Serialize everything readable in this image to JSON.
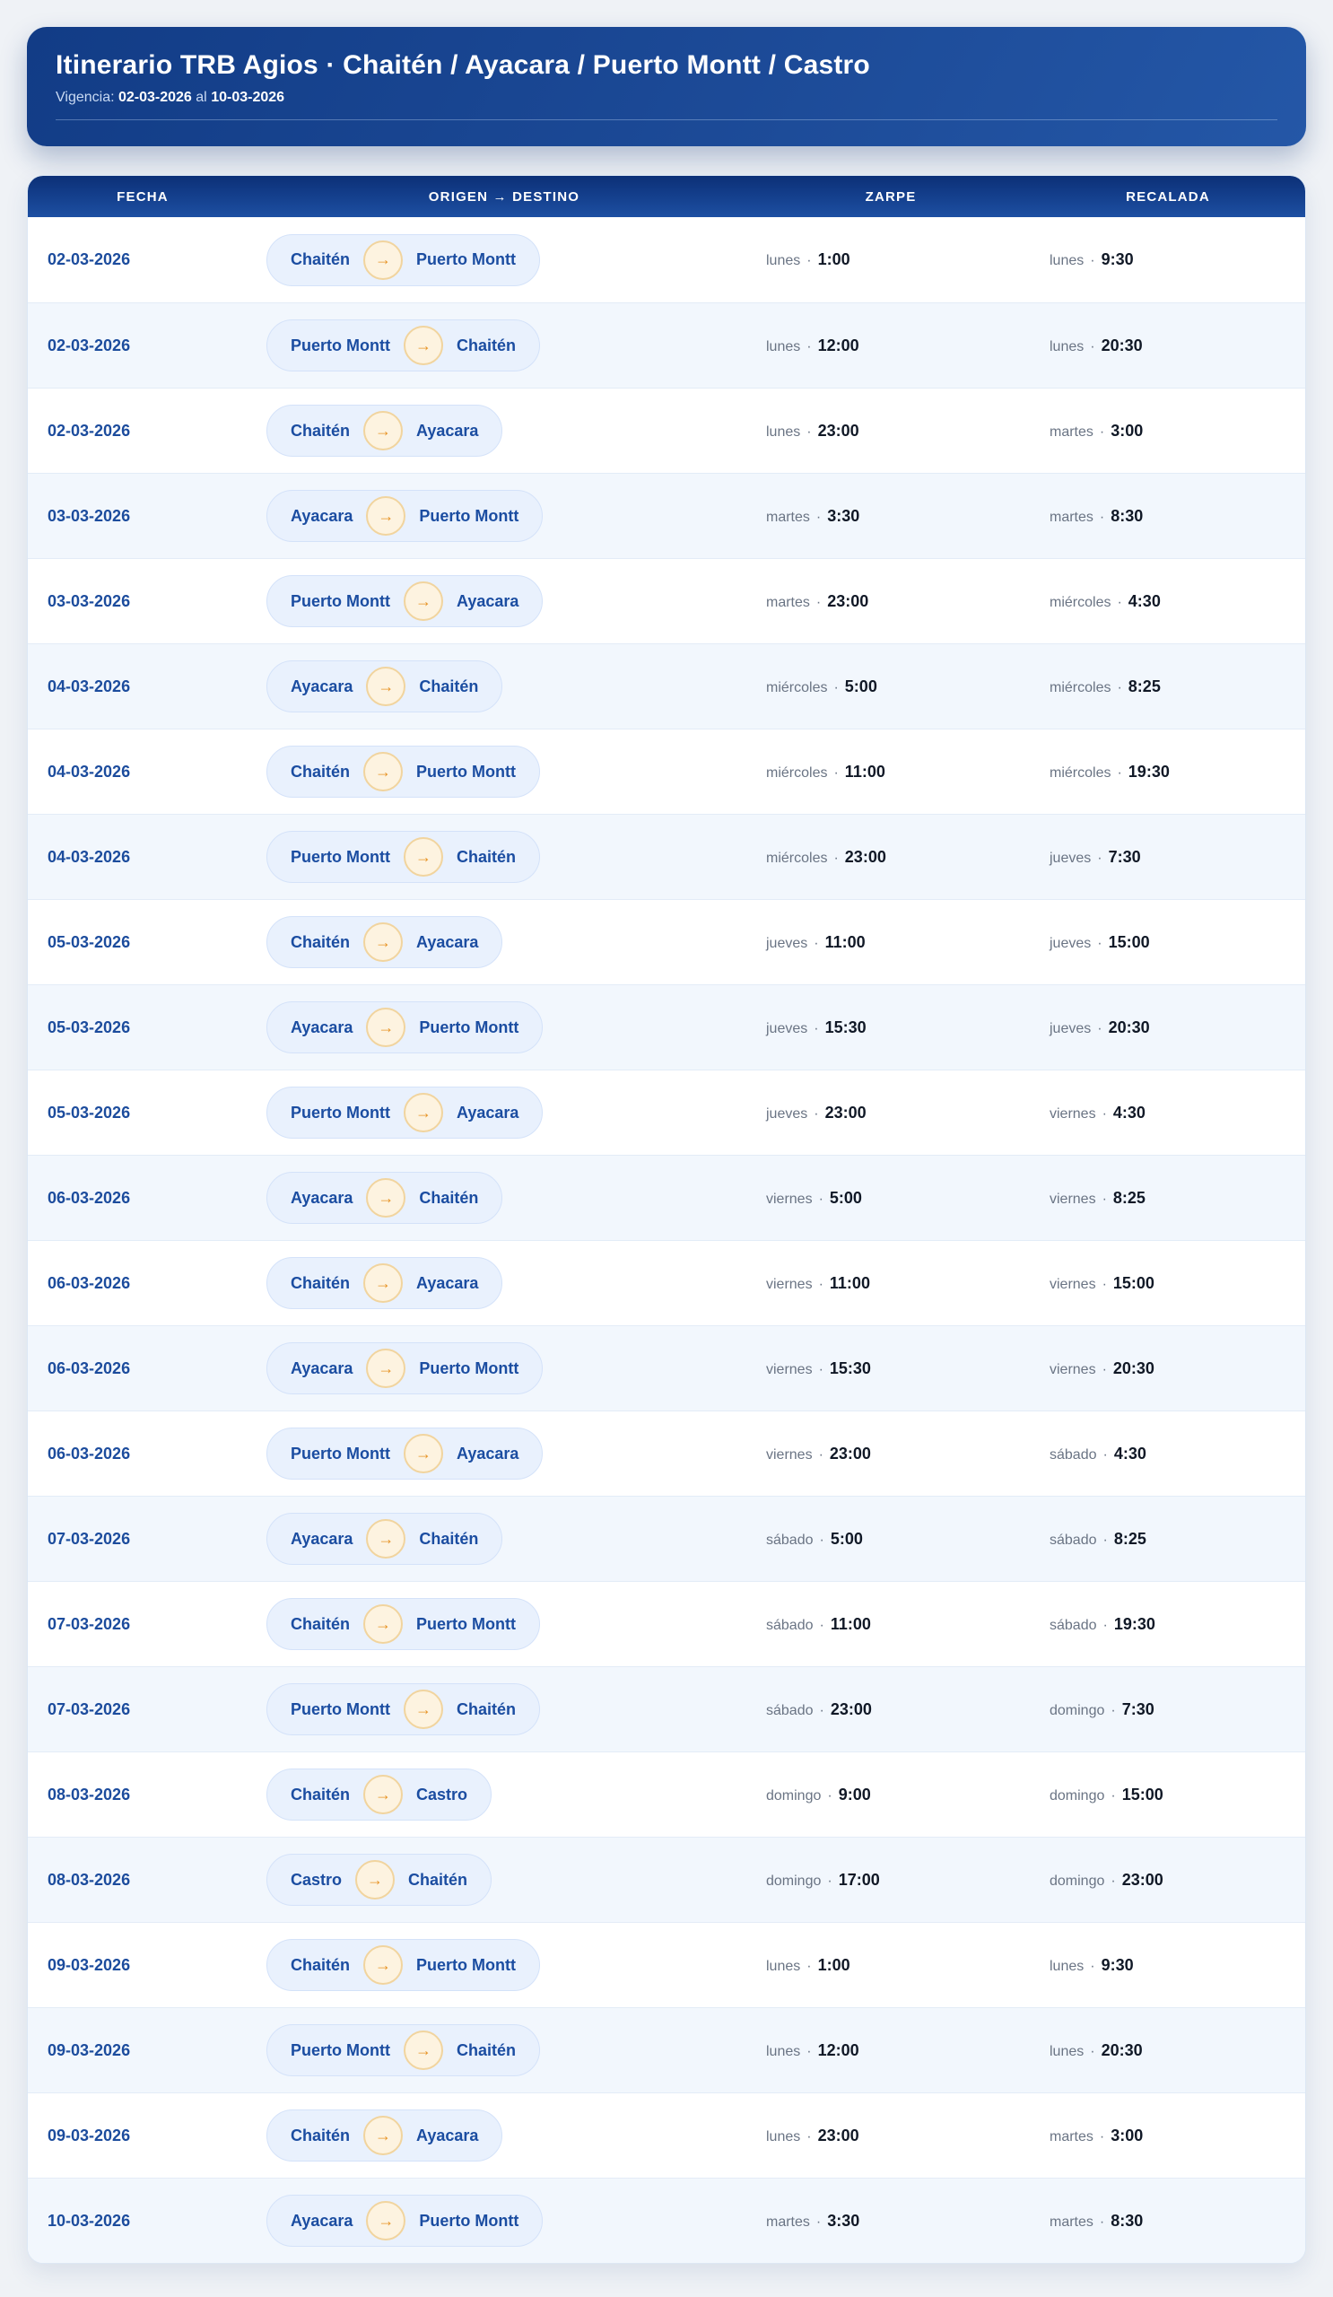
{
  "header": {
    "title": "Itinerario TRB Agios · Chaitén / Ayacara / Puerto Montt / Castro",
    "vigencia_label": "Vigencia:",
    "vigencia_from": "02-03-2026",
    "vigencia_al": "al",
    "vigencia_to": "10-03-2026"
  },
  "colors": {
    "header_blue_dark": "#123c86",
    "header_blue_light": "#2457a7",
    "thead_navy": "#0c3077",
    "date_blue": "#1c4c9d",
    "pill_bg": "#e9f1fd",
    "pill_border": "#d4e2f9",
    "badge_bg": "#fdf3e0",
    "badge_border": "#f1d49e",
    "arrow_orange": "#e79427",
    "day_gray": "#6a7484",
    "time_dark": "#101826",
    "row_alt_bg": "#f2f7fd",
    "page_bg": "#eff2f6"
  },
  "table": {
    "columns": [
      "FECHA",
      "ORIGEN → DESTINO",
      "ZARPE",
      "RECALADA"
    ],
    "separator": "·",
    "route_arrow": "→",
    "rows": [
      {
        "fecha": "02-03-2026",
        "origen": "Chaitén",
        "destino": "Puerto Montt",
        "zarpe_dia": "lunes",
        "zarpe_hora": "1:00",
        "recalada_dia": "lunes",
        "recalada_hora": "9:30"
      },
      {
        "fecha": "02-03-2026",
        "origen": "Puerto Montt",
        "destino": "Chaitén",
        "zarpe_dia": "lunes",
        "zarpe_hora": "12:00",
        "recalada_dia": "lunes",
        "recalada_hora": "20:30"
      },
      {
        "fecha": "02-03-2026",
        "origen": "Chaitén",
        "destino": "Ayacara",
        "zarpe_dia": "lunes",
        "zarpe_hora": "23:00",
        "recalada_dia": "martes",
        "recalada_hora": "3:00"
      },
      {
        "fecha": "03-03-2026",
        "origen": "Ayacara",
        "destino": "Puerto Montt",
        "zarpe_dia": "martes",
        "zarpe_hora": "3:30",
        "recalada_dia": "martes",
        "recalada_hora": "8:30"
      },
      {
        "fecha": "03-03-2026",
        "origen": "Puerto Montt",
        "destino": "Ayacara",
        "zarpe_dia": "martes",
        "zarpe_hora": "23:00",
        "recalada_dia": "miércoles",
        "recalada_hora": "4:30"
      },
      {
        "fecha": "04-03-2026",
        "origen": "Ayacara",
        "destino": "Chaitén",
        "zarpe_dia": "miércoles",
        "zarpe_hora": "5:00",
        "recalada_dia": "miércoles",
        "recalada_hora": "8:25"
      },
      {
        "fecha": "04-03-2026",
        "origen": "Chaitén",
        "destino": "Puerto Montt",
        "zarpe_dia": "miércoles",
        "zarpe_hora": "11:00",
        "recalada_dia": "miércoles",
        "recalada_hora": "19:30"
      },
      {
        "fecha": "04-03-2026",
        "origen": "Puerto Montt",
        "destino": "Chaitén",
        "zarpe_dia": "miércoles",
        "zarpe_hora": "23:00",
        "recalada_dia": "jueves",
        "recalada_hora": "7:30"
      },
      {
        "fecha": "05-03-2026",
        "origen": "Chaitén",
        "destino": "Ayacara",
        "zarpe_dia": "jueves",
        "zarpe_hora": "11:00",
        "recalada_dia": "jueves",
        "recalada_hora": "15:00"
      },
      {
        "fecha": "05-03-2026",
        "origen": "Ayacara",
        "destino": "Puerto Montt",
        "zarpe_dia": "jueves",
        "zarpe_hora": "15:30",
        "recalada_dia": "jueves",
        "recalada_hora": "20:30"
      },
      {
        "fecha": "05-03-2026",
        "origen": "Puerto Montt",
        "destino": "Ayacara",
        "zarpe_dia": "jueves",
        "zarpe_hora": "23:00",
        "recalada_dia": "viernes",
        "recalada_hora": "4:30"
      },
      {
        "fecha": "06-03-2026",
        "origen": "Ayacara",
        "destino": "Chaitén",
        "zarpe_dia": "viernes",
        "zarpe_hora": "5:00",
        "recalada_dia": "viernes",
        "recalada_hora": "8:25"
      },
      {
        "fecha": "06-03-2026",
        "origen": "Chaitén",
        "destino": "Ayacara",
        "zarpe_dia": "viernes",
        "zarpe_hora": "11:00",
        "recalada_dia": "viernes",
        "recalada_hora": "15:00"
      },
      {
        "fecha": "06-03-2026",
        "origen": "Ayacara",
        "destino": "Puerto Montt",
        "zarpe_dia": "viernes",
        "zarpe_hora": "15:30",
        "recalada_dia": "viernes",
        "recalada_hora": "20:30"
      },
      {
        "fecha": "06-03-2026",
        "origen": "Puerto Montt",
        "destino": "Ayacara",
        "zarpe_dia": "viernes",
        "zarpe_hora": "23:00",
        "recalada_dia": "sábado",
        "recalada_hora": "4:30"
      },
      {
        "fecha": "07-03-2026",
        "origen": "Ayacara",
        "destino": "Chaitén",
        "zarpe_dia": "sábado",
        "zarpe_hora": "5:00",
        "recalada_dia": "sábado",
        "recalada_hora": "8:25"
      },
      {
        "fecha": "07-03-2026",
        "origen": "Chaitén",
        "destino": "Puerto Montt",
        "zarpe_dia": "sábado",
        "zarpe_hora": "11:00",
        "recalada_dia": "sábado",
        "recalada_hora": "19:30"
      },
      {
        "fecha": "07-03-2026",
        "origen": "Puerto Montt",
        "destino": "Chaitén",
        "zarpe_dia": "sábado",
        "zarpe_hora": "23:00",
        "recalada_dia": "domingo",
        "recalada_hora": "7:30"
      },
      {
        "fecha": "08-03-2026",
        "origen": "Chaitén",
        "destino": "Castro",
        "zarpe_dia": "domingo",
        "zarpe_hora": "9:00",
        "recalada_dia": "domingo",
        "recalada_hora": "15:00"
      },
      {
        "fecha": "08-03-2026",
        "origen": "Castro",
        "destino": "Chaitén",
        "zarpe_dia": "domingo",
        "zarpe_hora": "17:00",
        "recalada_dia": "domingo",
        "recalada_hora": "23:00"
      },
      {
        "fecha": "09-03-2026",
        "origen": "Chaitén",
        "destino": "Puerto Montt",
        "zarpe_dia": "lunes",
        "zarpe_hora": "1:00",
        "recalada_dia": "lunes",
        "recalada_hora": "9:30"
      },
      {
        "fecha": "09-03-2026",
        "origen": "Puerto Montt",
        "destino": "Chaitén",
        "zarpe_dia": "lunes",
        "zarpe_hora": "12:00",
        "recalada_dia": "lunes",
        "recalada_hora": "20:30"
      },
      {
        "fecha": "09-03-2026",
        "origen": "Chaitén",
        "destino": "Ayacara",
        "zarpe_dia": "lunes",
        "zarpe_hora": "23:00",
        "recalada_dia": "martes",
        "recalada_hora": "3:00"
      },
      {
        "fecha": "10-03-2026",
        "origen": "Ayacara",
        "destino": "Puerto Montt",
        "zarpe_dia": "martes",
        "zarpe_hora": "3:30",
        "recalada_dia": "martes",
        "recalada_hora": "8:30"
      }
    ]
  }
}
